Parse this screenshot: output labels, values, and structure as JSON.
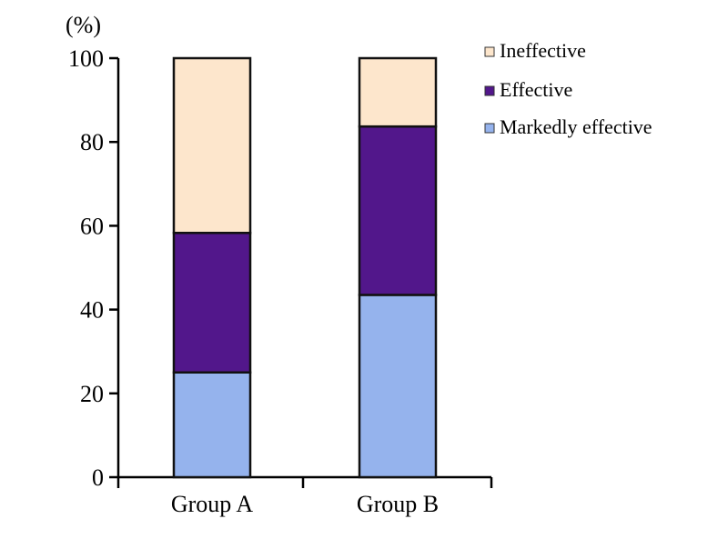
{
  "chart_data": {
    "type": "bar",
    "stacked": true,
    "unit_label": "(%)",
    "title": "",
    "xlabel": "",
    "ylabel": "",
    "categories": [
      "Group A",
      "Group B"
    ],
    "series": [
      {
        "name": "Markedly effective",
        "values": [
          25,
          43.5
        ],
        "color": "#95b3ed"
      },
      {
        "name": "Effective",
        "values": [
          33.3,
          40.2
        ],
        "color": "#52178b"
      },
      {
        "name": "Ineffective",
        "values": [
          41.7,
          16.3
        ],
        "color": "#fde6cc"
      }
    ],
    "legend_order": [
      "Ineffective",
      "Effective",
      "Markedly effective"
    ],
    "legend_position": "top-right",
    "ylim": [
      0,
      100
    ],
    "yticks": [
      "0",
      "20",
      "40",
      "60",
      "80",
      "100"
    ],
    "grid": false
  }
}
